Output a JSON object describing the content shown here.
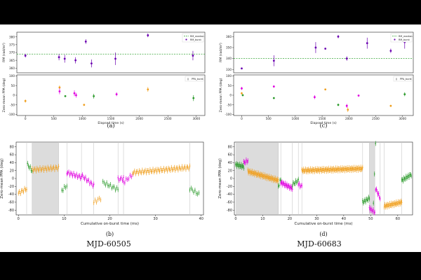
{
  "colors": {
    "pink": "#e000e0",
    "orange": "#f0a020",
    "green": "#2a9a2a",
    "purple": "#6a00b0",
    "navy": "#1a1a6e",
    "dash": "#3aa63a",
    "shade": "#dcdcdc",
    "line": "#c8c8c8"
  },
  "column_labels": {
    "left": "MJD-60505",
    "right": "MJD-60683"
  },
  "chart_data": [
    {
      "id": "a",
      "type": "scatter",
      "caption": "(a)",
      "title": "",
      "rm_panel": {
        "ylabel": "RM (rad/m²)",
        "ylim": [
          357,
          383
        ],
        "yticks": [
          360,
          365,
          370,
          375,
          380
        ],
        "legend": [
          "RM_median",
          "RM_burst"
        ],
        "median": 369,
        "points": [
          {
            "x": 0,
            "y": 368,
            "err": 1.2
          },
          {
            "x": 590,
            "y": 367,
            "err": 2
          },
          {
            "x": 690,
            "y": 366,
            "err": 2.5
          },
          {
            "x": 880,
            "y": 365,
            "err": 2
          },
          {
            "x": 1060,
            "y": 377,
            "err": 1.5
          },
          {
            "x": 1160,
            "y": 363,
            "err": 2.5
          },
          {
            "x": 1580,
            "y": 366,
            "err": 4
          },
          {
            "x": 2150,
            "y": 381,
            "err": 1.2
          },
          {
            "x": 2940,
            "y": 368,
            "err": 3
          }
        ]
      },
      "ppa_panel": {
        "ylabel": "Zero-mean PPA (deg)",
        "ylim": [
          -105,
          105
        ],
        "yticks": [
          -100,
          -50,
          0,
          50,
          100
        ],
        "xlabel": "Elapsed time (s)",
        "xlim": [
          -150,
          3150
        ],
        "xticks": [
          0,
          500,
          1000,
          1500,
          2000,
          2500,
          3000
        ],
        "legend": [
          "PPA_burst"
        ],
        "points": [
          {
            "x": 0,
            "y": -30,
            "err": 8,
            "c": "orange"
          },
          {
            "x": 600,
            "y": 40,
            "err": 10,
            "c": "orange"
          },
          {
            "x": 600,
            "y": 20,
            "err": 15,
            "c": "pink"
          },
          {
            "x": 700,
            "y": -5,
            "err": 4,
            "c": "green"
          },
          {
            "x": 860,
            "y": 10,
            "err": 15,
            "c": "pink"
          },
          {
            "x": 890,
            "y": 0,
            "err": 12,
            "c": "pink"
          },
          {
            "x": 1030,
            "y": -50,
            "err": 5,
            "c": "orange"
          },
          {
            "x": 1200,
            "y": -5,
            "err": 12,
            "c": "green"
          },
          {
            "x": 1600,
            "y": 5,
            "err": 10,
            "c": "pink"
          },
          {
            "x": 2150,
            "y": 30,
            "err": 12,
            "c": "orange"
          },
          {
            "x": 2950,
            "y": -15,
            "err": 15,
            "c": "green"
          }
        ]
      }
    },
    {
      "id": "c",
      "type": "scatter",
      "caption": "(c)",
      "title": "",
      "rm_panel": {
        "ylabel": "RM (rad/m²)",
        "ylim": [
          327,
          364
        ],
        "yticks": [
          330,
          340,
          350,
          360
        ],
        "legend": [
          "RM_median",
          "RM_burst"
        ],
        "median": 340,
        "points": [
          {
            "x": 0,
            "y": 331,
            "err": 0.5
          },
          {
            "x": 600,
            "y": 338,
            "err": 5
          },
          {
            "x": 1380,
            "y": 350,
            "err": 5
          },
          {
            "x": 1560,
            "y": 349,
            "err": 0.5
          },
          {
            "x": 1800,
            "y": 360,
            "err": 1.5
          },
          {
            "x": 1960,
            "y": 340,
            "err": 2
          },
          {
            "x": 2340,
            "y": 354,
            "err": 5
          },
          {
            "x": 2780,
            "y": 347,
            "err": 2
          },
          {
            "x": 3040,
            "y": 355,
            "err": 6
          }
        ]
      },
      "ppa_panel": {
        "ylabel": "Zero-mean PPA (deg)",
        "ylim": [
          -105,
          105
        ],
        "yticks": [
          -100,
          -50,
          0,
          50,
          100
        ],
        "xlabel": "Elapsed time (s)",
        "xlim": [
          -150,
          3200
        ],
        "xticks": [
          0,
          500,
          1000,
          1500,
          2000,
          2500,
          3000
        ],
        "legend": [
          "PPA_burst"
        ],
        "points": [
          {
            "x": 0,
            "y": 35,
            "err": 8,
            "c": "pink"
          },
          {
            "x": 0,
            "y": 10,
            "err": 6,
            "c": "orange"
          },
          {
            "x": 20,
            "y": 0,
            "err": 5,
            "c": "green"
          },
          {
            "x": 600,
            "y": 45,
            "err": 3,
            "c": "pink"
          },
          {
            "x": 600,
            "y": -15,
            "err": 5,
            "c": "green"
          },
          {
            "x": 1360,
            "y": -10,
            "err": 10,
            "c": "pink"
          },
          {
            "x": 1560,
            "y": 30,
            "err": 4,
            "c": "orange"
          },
          {
            "x": 1800,
            "y": -50,
            "err": 6,
            "c": "green"
          },
          {
            "x": 1960,
            "y": -55,
            "err": 10,
            "c": "pink"
          },
          {
            "x": 1980,
            "y": -75,
            "err": 12,
            "c": "orange"
          },
          {
            "x": 2180,
            "y": -2,
            "err": 4,
            "c": "pink"
          },
          {
            "x": 2780,
            "y": -55,
            "err": 4,
            "c": "orange"
          },
          {
            "x": 3040,
            "y": 5,
            "err": 10,
            "c": "green"
          }
        ]
      }
    },
    {
      "id": "b",
      "type": "scatter",
      "caption": "(b)",
      "title": "",
      "xlabel": "Cumulative on-burst time (ms)",
      "ylabel": "Zero-mean PPA (deg)",
      "xlim": [
        -0.5,
        40.5
      ],
      "ylim": [
        -92,
        92
      ],
      "xticks": [
        0,
        10,
        20,
        30,
        40
      ],
      "yticks": [
        -80,
        -60,
        -40,
        -20,
        0,
        20,
        40,
        60,
        80
      ],
      "shaded": [
        [
          3.0,
          8.8
        ]
      ],
      "dividers": [
        1.8,
        3.0,
        8.8,
        10.6,
        13.8,
        16.5,
        21.8,
        23.0,
        37.5
      ],
      "segments": [
        {
          "c": "orange",
          "x0": 0.0,
          "x1": 1.8,
          "y0": -37,
          "y1": -26,
          "n": 9
        },
        {
          "c": "green",
          "x0": 2.0,
          "x1": 3.0,
          "y0": 35,
          "y1": 20,
          "n": 6
        },
        {
          "c": "orange",
          "x0": 3.0,
          "x1": 8.8,
          "y0": 22,
          "y1": 27,
          "n": 28
        },
        {
          "c": "green",
          "x0": 9.5,
          "x1": 10.6,
          "y0": -30,
          "y1": -18,
          "n": 5
        },
        {
          "c": "pink",
          "x0": 10.6,
          "x1": 13.8,
          "y0": 15,
          "y1": 3,
          "n": 16
        },
        {
          "c": "pink",
          "x0": 13.8,
          "x1": 16.5,
          "y0": 8,
          "y1": -18,
          "n": 13
        },
        {
          "c": "orange",
          "x0": 16.5,
          "x1": 18.0,
          "y0": -60,
          "y1": -50,
          "n": 6
        },
        {
          "c": "green",
          "x0": 18.5,
          "x1": 21.8,
          "y0": -10,
          "y1": -28,
          "n": 13
        },
        {
          "c": "pink",
          "x0": 21.8,
          "x1": 23.0,
          "y0": -2,
          "y1": 0,
          "n": 6
        },
        {
          "c": "pink",
          "x0": 23.0,
          "x1": 25.0,
          "y0": -10,
          "y1": 10,
          "n": 8
        },
        {
          "c": "orange",
          "x0": 25.0,
          "x1": 37.5,
          "y0": 15,
          "y1": 28,
          "n": 60
        },
        {
          "c": "green",
          "x0": 37.5,
          "x1": 39.5,
          "y0": -25,
          "y1": -40,
          "n": 8
        }
      ]
    },
    {
      "id": "d",
      "type": "scatter",
      "caption": "(d)",
      "title": "",
      "xlabel": "Cumulative on-burst time (ms)",
      "ylabel": "Zero-mean PPA (deg)",
      "xlim": [
        -0.5,
        65.5
      ],
      "ylim": [
        -92,
        92
      ],
      "xticks": [
        0,
        10,
        20,
        30,
        40,
        50,
        60
      ],
      "yticks": [
        -80,
        -60,
        -40,
        -20,
        0,
        20,
        40,
        60,
        80
      ],
      "shaded": [
        [
          0.0,
          15.8
        ],
        [
          49.5,
          51.5
        ]
      ],
      "dividers": [
        15.8,
        16.7,
        21.0,
        23.2,
        24.5,
        47.0,
        49.5,
        51.5,
        53.5,
        55.0,
        61.5
      ],
      "segments": [
        {
          "c": "green",
          "x0": 0.0,
          "x1": 3.0,
          "y0": 35,
          "y1": 30,
          "n": 14
        },
        {
          "c": "pink",
          "x0": 3.0,
          "x1": 4.5,
          "y0": 40,
          "y1": 45,
          "n": 6
        },
        {
          "c": "orange",
          "x0": 4.5,
          "x1": 15.8,
          "y0": 18,
          "y1": -5,
          "n": 55
        },
        {
          "c": "green",
          "x0": 15.8,
          "x1": 16.7,
          "y0": -20,
          "y1": -2,
          "n": 4
        },
        {
          "c": "pink",
          "x0": 16.7,
          "x1": 21.0,
          "y0": -10,
          "y1": -25,
          "n": 20
        },
        {
          "c": "green",
          "x0": 21.0,
          "x1": 23.2,
          "y0": -15,
          "y1": -5,
          "n": 8
        },
        {
          "c": "pink",
          "x0": 23.2,
          "x1": 24.5,
          "y0": -15,
          "y1": -20,
          "n": 5
        },
        {
          "c": "orange",
          "x0": 24.5,
          "x1": 47.0,
          "y0": 20,
          "y1": 25,
          "n": 100
        },
        {
          "c": "green",
          "x0": 47.0,
          "x1": 49.5,
          "y0": -60,
          "y1": -50,
          "n": 10
        },
        {
          "c": "pink",
          "x0": 49.5,
          "x1": 51.5,
          "y0": -75,
          "y1": -85,
          "n": 8
        },
        {
          "c": "green",
          "x0": 51.0,
          "x1": 51.8,
          "y0": -60,
          "y1": 85,
          "n": 3
        },
        {
          "c": "pink",
          "x0": 51.8,
          "x1": 53.5,
          "y0": -25,
          "y1": -50,
          "n": 7
        },
        {
          "c": "orange",
          "x0": 55.0,
          "x1": 61.5,
          "y0": -70,
          "y1": -60,
          "n": 30
        },
        {
          "c": "green",
          "x0": 61.5,
          "x1": 65.0,
          "y0": -5,
          "y1": 10,
          "n": 14
        }
      ]
    }
  ]
}
